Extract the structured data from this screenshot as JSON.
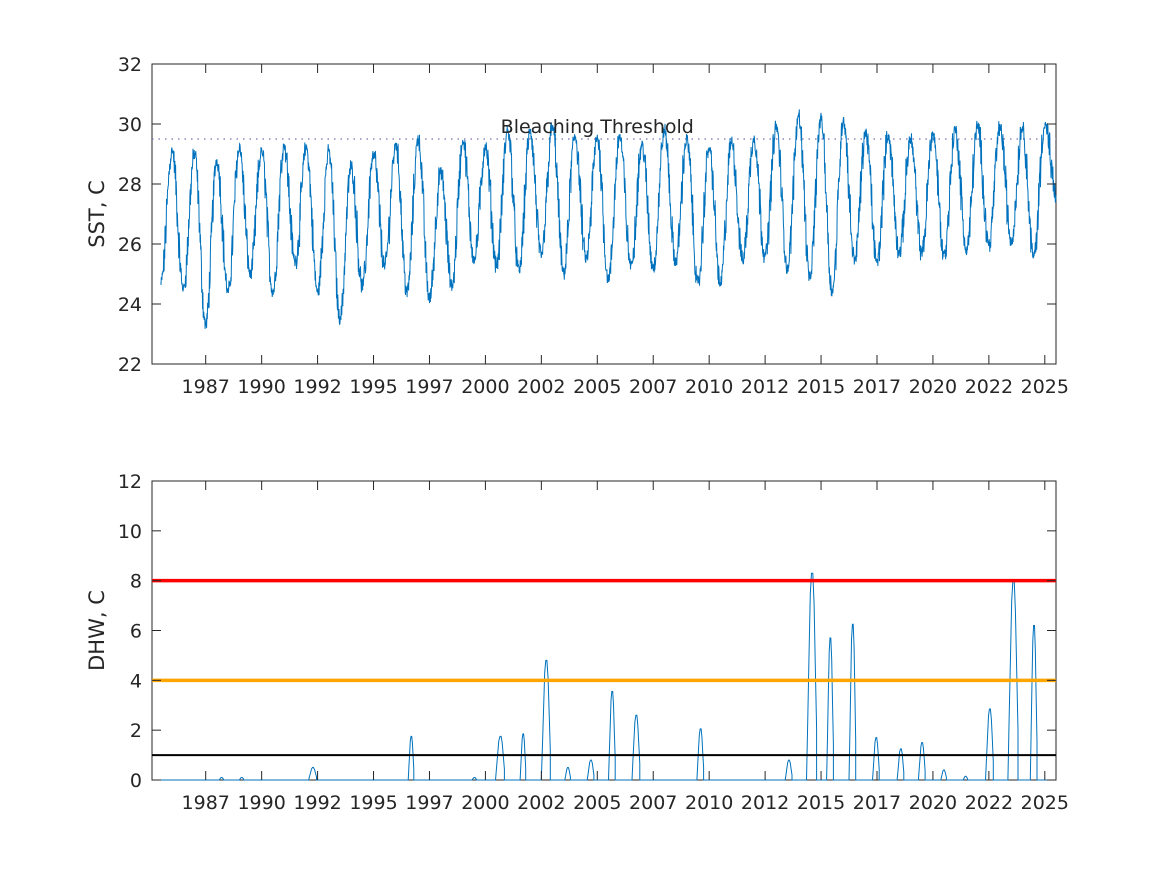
{
  "chart_data": [
    {
      "type": "line",
      "ylabel": "SST, C",
      "xlim": [
        1984.6,
        2025.0
      ],
      "ylim": [
        22,
        32
      ],
      "yticks": [
        22,
        24,
        26,
        28,
        30,
        32
      ],
      "xtick_labels": [
        "1987",
        "1990",
        "1992",
        "1995",
        "1997",
        "2000",
        "2002",
        "2005",
        "2007",
        "2010",
        "2012",
        "2015",
        "2017",
        "2020",
        "2022",
        "2025"
      ],
      "grid": false,
      "series_color": "#0072BD",
      "threshold": {
        "label": "Bleaching Threshold",
        "value": 29.5,
        "style": "dotted",
        "color": "#7E6FB0"
      },
      "series": [
        {
          "x": [
            1985.0,
            1985.5,
            1986.0,
            1986.5,
            1987.0,
            1987.5,
            1988.0,
            1988.5,
            1989.0,
            1989.5,
            1990.0,
            1990.5,
            1991.0,
            1991.5,
            1992.0,
            1992.5,
            1993.0,
            1993.5,
            1994.0,
            1994.5,
            1995.0,
            1995.5,
            1996.0,
            1996.5,
            1997.0,
            1997.5,
            1998.0,
            1998.5,
            1999.0,
            1999.5,
            2000.0,
            2000.5,
            2001.0,
            2001.5,
            2002.0,
            2002.5,
            2003.0,
            2003.5,
            2004.0,
            2004.5,
            2005.0,
            2005.5,
            2006.0,
            2006.5,
            2007.0,
            2007.5,
            2008.0,
            2008.5,
            2009.0,
            2009.5,
            2010.0,
            2010.5,
            2011.0,
            2011.5,
            2012.0,
            2012.5,
            2013.0,
            2013.5,
            2014.0,
            2014.5,
            2015.0,
            2015.5,
            2016.0,
            2016.5,
            2017.0,
            2017.5,
            2018.0,
            2018.5,
            2019.0,
            2019.5,
            2020.0,
            2020.5,
            2021.0,
            2021.5,
            2022.0,
            2022.5,
            2023.0,
            2023.5,
            2024.0,
            2024.5,
            2025.0
          ],
          "values": [
            24.7,
            29.1,
            24.5,
            29.0,
            23.3,
            28.8,
            24.4,
            29.2,
            25.0,
            29.1,
            24.4,
            29.3,
            25.4,
            29.2,
            24.4,
            29.1,
            23.5,
            28.6,
            24.6,
            29.0,
            25.3,
            29.3,
            24.4,
            29.5,
            24.2,
            28.4,
            24.6,
            29.4,
            25.5,
            29.2,
            25.3,
            29.8,
            25.1,
            29.7,
            25.6,
            29.9,
            25.0,
            29.6,
            25.5,
            29.5,
            24.8,
            29.6,
            25.3,
            29.3,
            25.2,
            29.8,
            25.4,
            29.5,
            24.7,
            29.2,
            24.7,
            29.4,
            25.5,
            29.5,
            25.6,
            29.9,
            25.2,
            30.3,
            24.9,
            30.2,
            24.4,
            30.1,
            25.5,
            29.7,
            25.4,
            29.6,
            25.7,
            29.5,
            25.7,
            29.7,
            25.6,
            29.8,
            25.8,
            29.9,
            26.0,
            29.9,
            26.1,
            29.9,
            25.6,
            30.0,
            27.6
          ]
        }
      ]
    },
    {
      "type": "line",
      "ylabel": "DHW, C",
      "xlim": [
        1984.6,
        2025.0
      ],
      "ylim": [
        0,
        12
      ],
      "yticks": [
        0,
        2,
        4,
        6,
        8,
        10,
        12
      ],
      "xtick_labels": [
        "1987",
        "1990",
        "1992",
        "1995",
        "1997",
        "2000",
        "2002",
        "2005",
        "2007",
        "2010",
        "2012",
        "2015",
        "2017",
        "2020",
        "2022",
        "2025"
      ],
      "grid": false,
      "series_color": "#0072BD",
      "reference_lines": [
        {
          "value": 8,
          "color": "#FF0000"
        },
        {
          "value": 4,
          "color": "#FFA500"
        },
        {
          "value": 1,
          "color": "#000000"
        }
      ],
      "events": [
        {
          "start": 1987.6,
          "end": 1987.8,
          "peak": 0.1
        },
        {
          "start": 1988.5,
          "end": 1988.7,
          "peak": 0.1
        },
        {
          "start": 1991.6,
          "end": 1991.95,
          "peak": 0.5
        },
        {
          "start": 1996.05,
          "end": 1996.3,
          "peak": 1.75
        },
        {
          "start": 1998.9,
          "end": 1999.1,
          "peak": 0.1
        },
        {
          "start": 1999.95,
          "end": 2000.35,
          "peak": 1.75
        },
        {
          "start": 2001.05,
          "end": 2001.3,
          "peak": 1.85
        },
        {
          "start": 2002.0,
          "end": 2002.4,
          "peak": 4.8
        },
        {
          "start": 2003.05,
          "end": 2003.3,
          "peak": 0.5
        },
        {
          "start": 2004.05,
          "end": 2004.35,
          "peak": 0.8
        },
        {
          "start": 2005.0,
          "end": 2005.3,
          "peak": 3.55
        },
        {
          "start": 2006.05,
          "end": 2006.4,
          "peak": 2.6
        },
        {
          "start": 2008.95,
          "end": 2009.25,
          "peak": 2.05
        },
        {
          "start": 2012.9,
          "end": 2013.2,
          "peak": 0.8
        },
        {
          "start": 2013.85,
          "end": 2014.3,
          "peak": 8.3
        },
        {
          "start": 2014.75,
          "end": 2015.05,
          "peak": 5.7
        },
        {
          "start": 2015.75,
          "end": 2016.05,
          "peak": 6.25
        },
        {
          "start": 2016.8,
          "end": 2017.1,
          "peak": 1.7
        },
        {
          "start": 2017.9,
          "end": 2018.2,
          "peak": 1.25
        },
        {
          "start": 2018.85,
          "end": 2019.15,
          "peak": 1.5
        },
        {
          "start": 2019.85,
          "end": 2020.1,
          "peak": 0.4
        },
        {
          "start": 2020.85,
          "end": 2021.05,
          "peak": 0.15
        },
        {
          "start": 2021.85,
          "end": 2022.2,
          "peak": 2.85
        },
        {
          "start": 2022.85,
          "end": 2023.3,
          "peak": 8.0
        },
        {
          "start": 2023.85,
          "end": 2024.15,
          "peak": 6.2
        }
      ]
    }
  ]
}
